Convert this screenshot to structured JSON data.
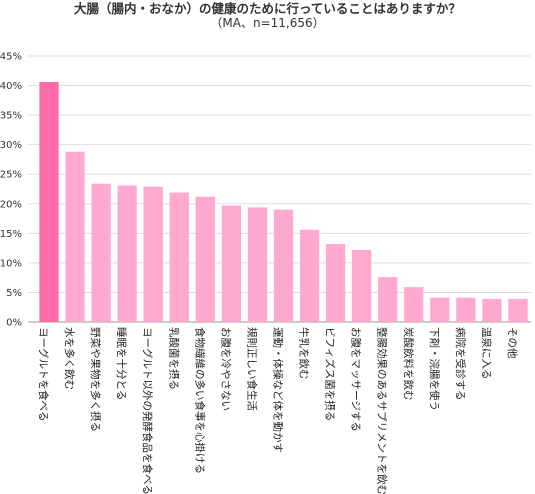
{
  "chart_data": {
    "type": "bar",
    "title": "大腸（腸内・おなか）の健康のために行っていることはありますか？",
    "subtitle": "（MA、n=11,656）",
    "xlabel": "",
    "ylabel": "",
    "ylim": [
      0,
      45
    ],
    "y_ticks": [
      "0%",
      "5%",
      "10%",
      "15%",
      "20%",
      "25%",
      "30%",
      "35%",
      "40%",
      "45%"
    ],
    "grid": true,
    "legend": "none",
    "categories": [
      "ヨーグルトを食べる",
      "水を多く飲む",
      "野菜や果物を多く摂る",
      "睡眠を十分とる",
      "ヨーグルト以外の発酵食品を食べる",
      "乳酸菌を摂る",
      "食物繊維の多い食事を心掛ける",
      "お腹を冷やさない",
      "規則正しい食生活",
      "運動・体操など体を動かす",
      "牛乳を飲む",
      "ビフィズス菌を摂る",
      "お腹をマッサージする",
      "整腸効果のあるサプリメントを飲む",
      "炭酸飲料を飲む",
      "下剤・浣腸を使う",
      "病院を受診する",
      "温泉に入る",
      "その他"
    ],
    "values": [
      40.6,
      28.8,
      23.4,
      23.1,
      22.9,
      21.9,
      21.2,
      19.7,
      19.4,
      19.0,
      15.6,
      13.2,
      12.2,
      7.6,
      5.9,
      4.1,
      4.1,
      3.9,
      3.9
    ],
    "colors": {
      "highlight": "#ff6aaa",
      "bar": "#ffa9d0",
      "grid": "#dddddd",
      "axis": "#999999"
    }
  }
}
